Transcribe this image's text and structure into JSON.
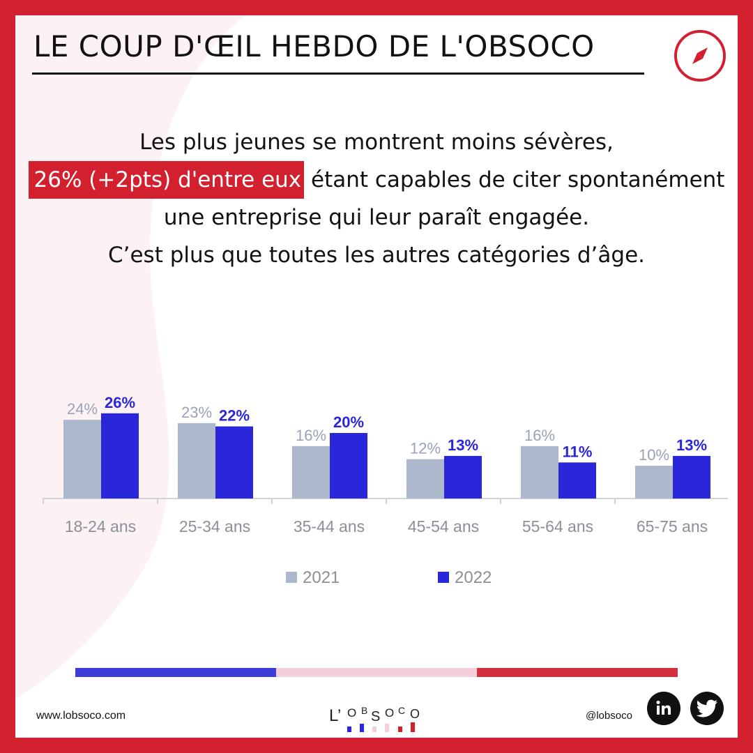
{
  "header": {
    "title": "LE COUP D'ŒIL HEBDO DE L'OBSOCO"
  },
  "intro": {
    "line1": "Les plus jeunes se montrent moins sévères,",
    "highlight": "26% (+2pts) d'entre eux",
    "line2_rest": " étant capables de citer spontanément",
    "line3": "une entreprise qui leur paraît engagée.",
    "line4": "C’est plus que toutes les autres catégories d’âge."
  },
  "chart_data": {
    "type": "bar",
    "categories": [
      "18-24 ans",
      "25-34 ans",
      "35-44 ans",
      "45-54 ans",
      "55-64 ans",
      "65-75 ans"
    ],
    "series": [
      {
        "name": "2021",
        "values": [
          24,
          23,
          16,
          12,
          16,
          10
        ],
        "labels": [
          "24%",
          "23%",
          "16%",
          "12%",
          "16%",
          "10%"
        ],
        "color": "#adb8cc"
      },
      {
        "name": "2022",
        "values": [
          26,
          22,
          20,
          13,
          11,
          13
        ],
        "labels": [
          "26%",
          "22%",
          "20%",
          "13%",
          "11%",
          "13%"
        ],
        "color": "#2a26d9"
      }
    ],
    "ylim": [
      0,
      30
    ],
    "legend": "bottom",
    "grid": false
  },
  "footer": {
    "website": "www.lobsoco.com",
    "handle": "@lobsoco",
    "logo_text": "L’OBSOCO",
    "bar_colors": [
      "#3e3cd8",
      "#f4cfd9",
      "#d2303e"
    ]
  },
  "colors": {
    "brand_red": "#d2202f",
    "series_2021": "#adb8cc",
    "series_2022": "#2a26d9"
  },
  "icons": {
    "header": "compass-icon",
    "social": [
      "linkedin-icon",
      "twitter-icon"
    ]
  }
}
